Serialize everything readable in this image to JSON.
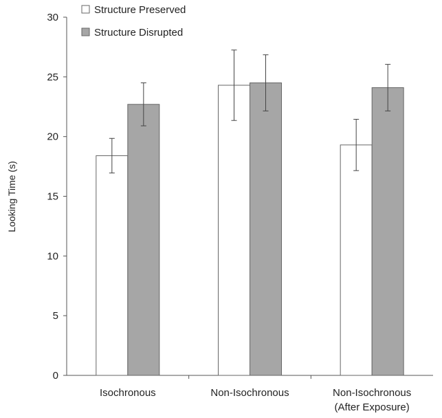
{
  "chart_data": {
    "type": "bar",
    "title": "",
    "xlabel": "",
    "ylabel": "Looking Time (s)",
    "ylim": [
      0,
      30
    ],
    "yticks": [
      0,
      5,
      10,
      15,
      20,
      25,
      30
    ],
    "grid": false,
    "legend_position": "top-left",
    "categories": [
      [
        "Isochronous"
      ],
      [
        "Non-Isochronous"
      ],
      [
        "Non-Isochronous",
        "(After Exposure)"
      ]
    ],
    "series": [
      {
        "name": "Structure Preserved",
        "color": "#ffffff",
        "values": [
          18.4,
          24.3,
          19.3
        ],
        "error": [
          1.45,
          2.95,
          2.15
        ]
      },
      {
        "name": "Structure Disrupted",
        "color": "#a6a6a6",
        "values": [
          22.7,
          24.5,
          24.1
        ],
        "error": [
          1.8,
          2.35,
          1.95
        ]
      }
    ]
  }
}
